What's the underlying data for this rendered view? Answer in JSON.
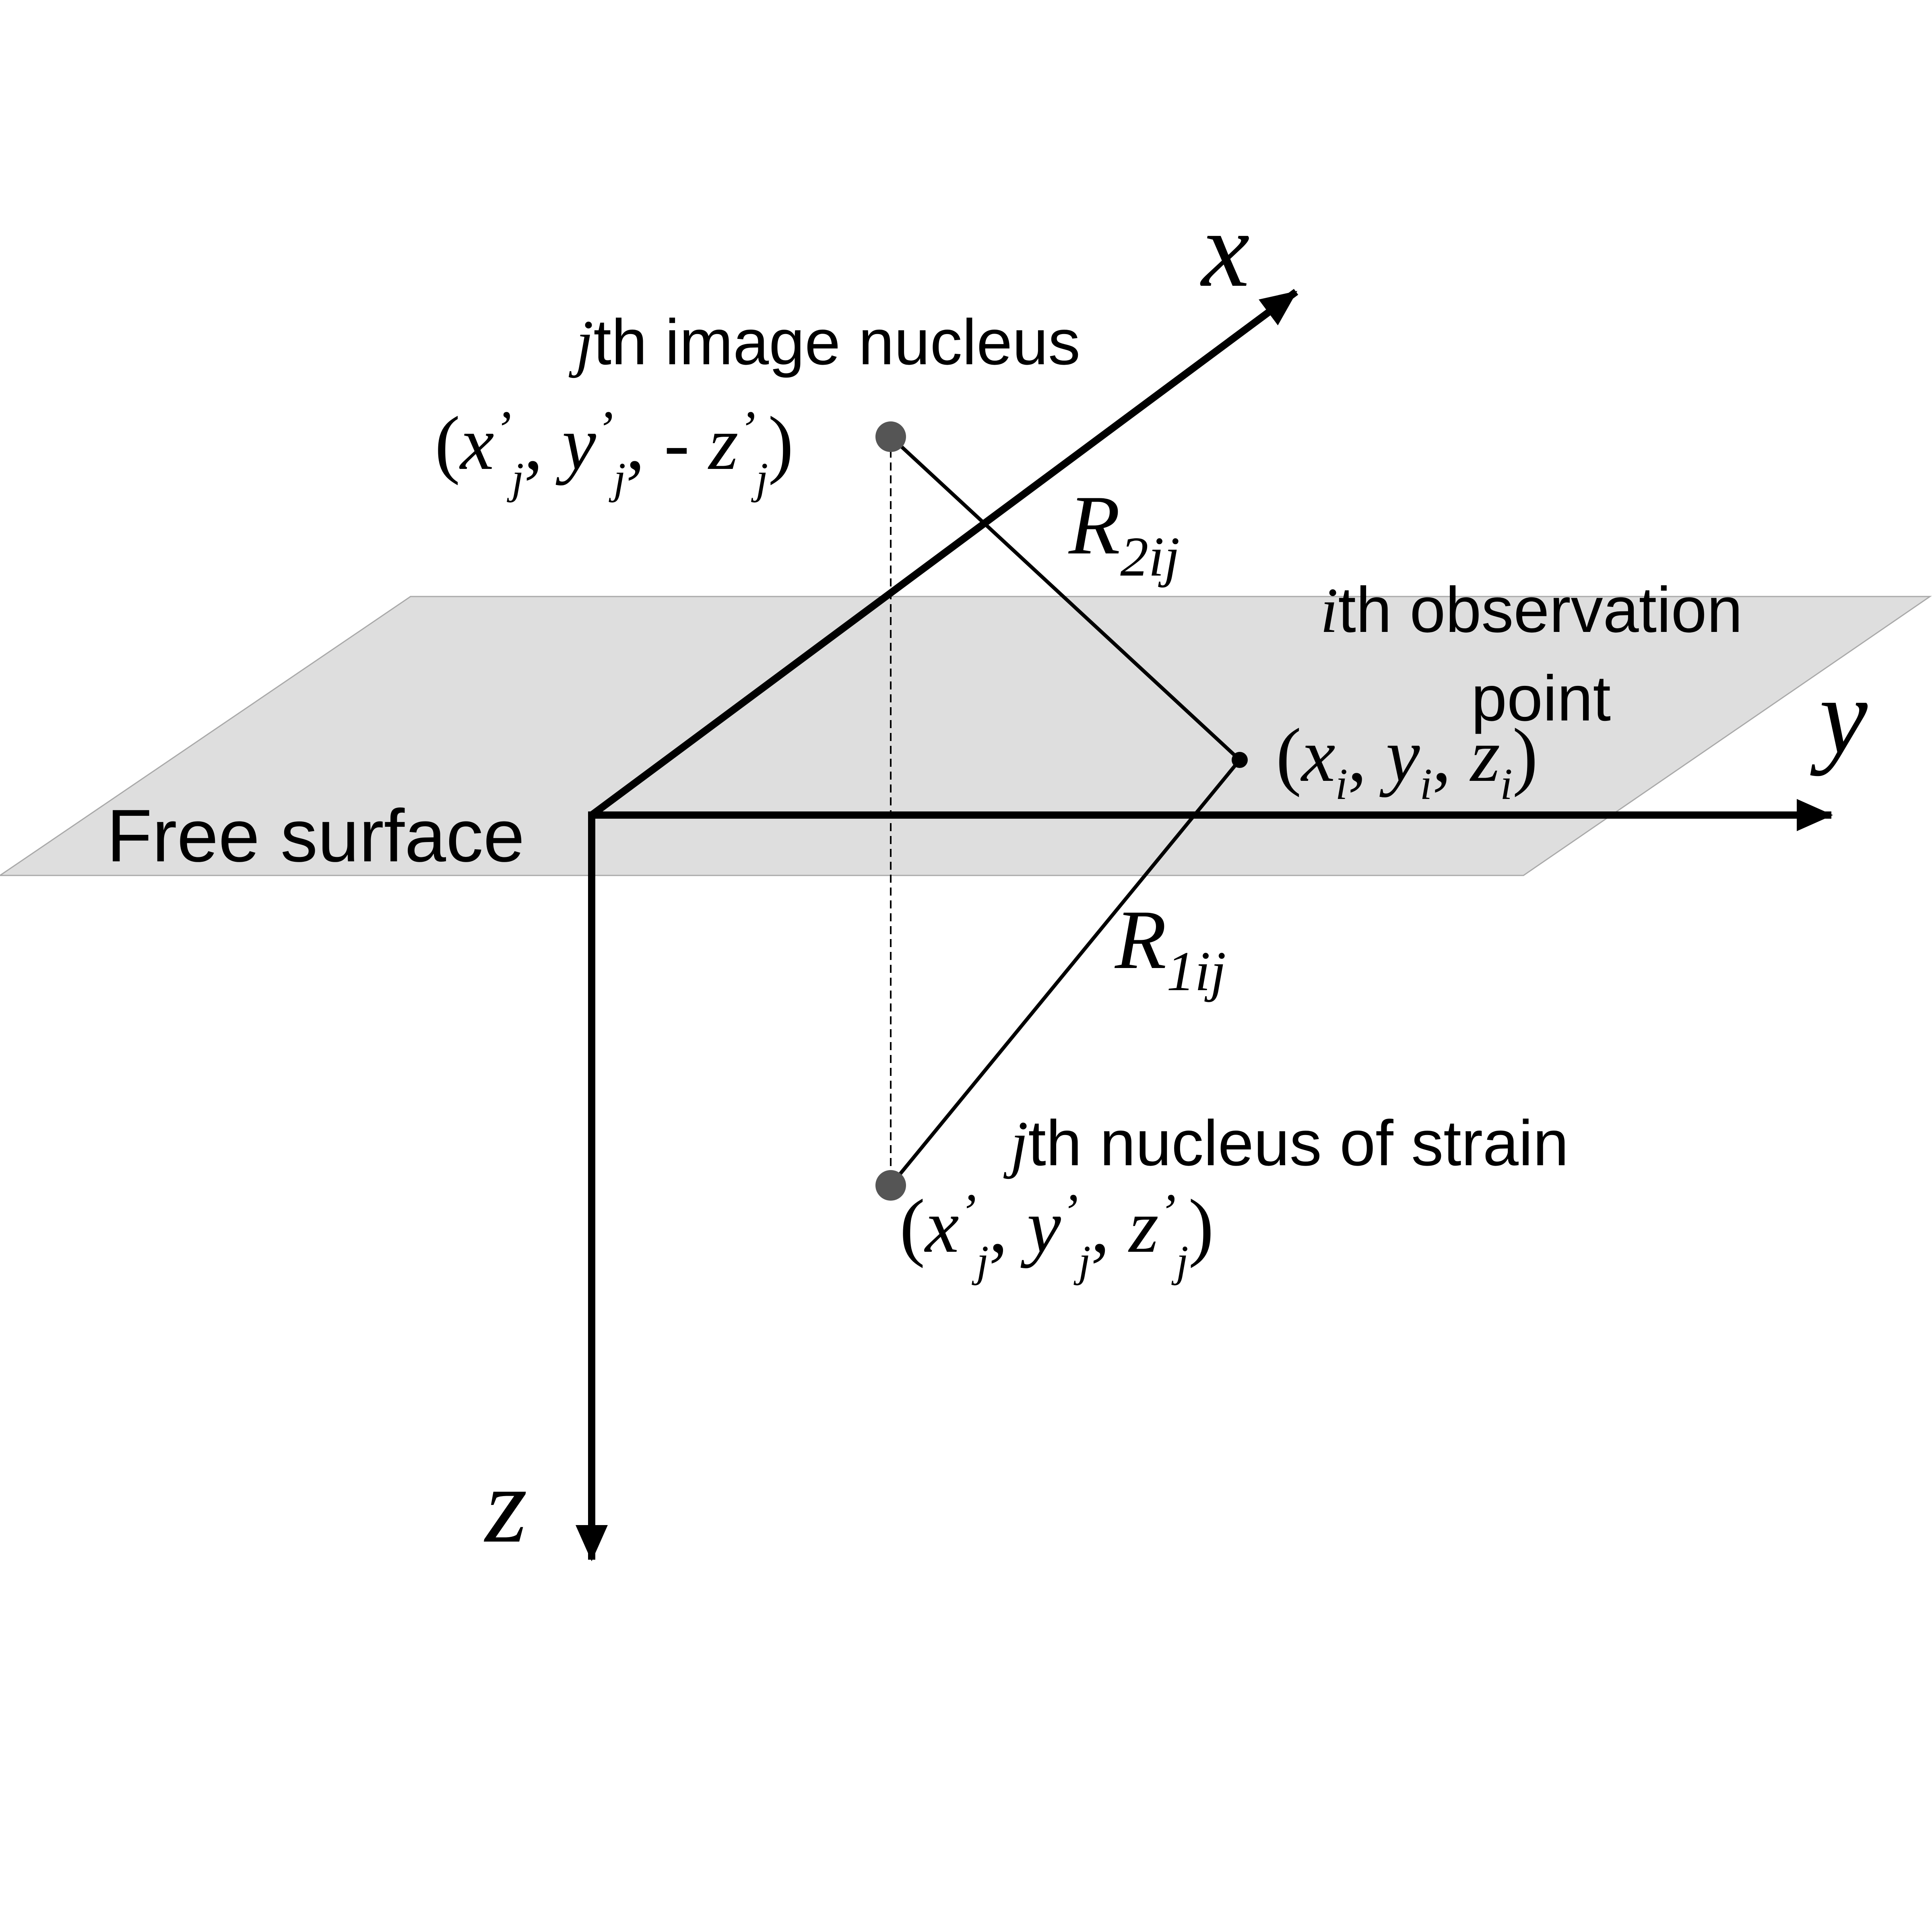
{
  "colors": {
    "surface_fill": "#dedede",
    "surface_edge": "#a9a9a9",
    "ink": "#000000",
    "nucleus_dot": "#555555"
  },
  "axes": {
    "x_label": "x",
    "y_label": "y",
    "z_label": "z"
  },
  "surface": {
    "label": "Free surface"
  },
  "image_nucleus": {
    "title_italic": "j",
    "title_rest": "th image nucleus",
    "coord": {
      "open": "(",
      "x": "x",
      "sub1": "j",
      "sep1": ", ",
      "y": "y",
      "sub2": "j",
      "sep2": ", - ",
      "z": "z",
      "sub3": "j",
      "close": ")",
      "prime": "’"
    }
  },
  "observation_point": {
    "title_italic": "i",
    "title_line1_rest": "th observation",
    "title_line2": "point",
    "coord": {
      "open": "(",
      "x": "x",
      "sub1": "i",
      "sep1": ", ",
      "y": "y",
      "sub2": "i",
      "sep2": ", ",
      "z": "z",
      "sub3": "i",
      "close": ")"
    }
  },
  "strain_nucleus": {
    "title_italic": "j",
    "title_rest": "th nucleus of strain",
    "coord": {
      "open": "(",
      "x": "x",
      "sub1": "j",
      "sep1": ", ",
      "y": "y",
      "sub2": "j",
      "sep2": ", ",
      "z": "z",
      "sub3": "j",
      "close": ")",
      "prime": "’"
    }
  },
  "distances": {
    "r2_main": "R",
    "r2_sub": "2ij",
    "r1_main": "R",
    "r1_sub": "1ij"
  }
}
